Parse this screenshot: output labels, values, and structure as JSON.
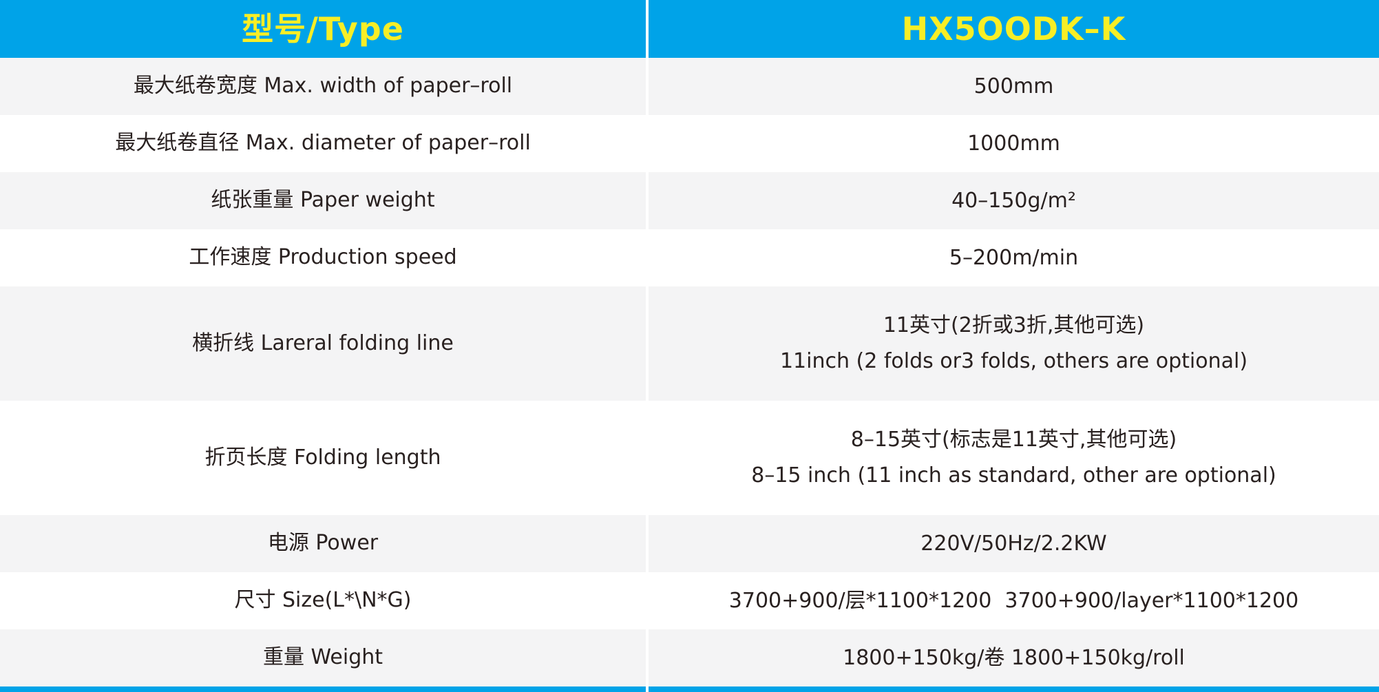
{
  "colors": {
    "header_blue": "#00a3e8",
    "header_yellow": "#f8ee26",
    "row_gray": "#f4f4f5",
    "row_white": "#ffffff",
    "text_dark": "#292120"
  },
  "table": {
    "header": {
      "type_label": "型号/Type",
      "model_label": "HX5OODK–K"
    },
    "rows": [
      {
        "label": "最大纸卷宽度 Max. width of paper–roll",
        "value1": "500mm",
        "value2": ""
      },
      {
        "label": "最大纸卷直径 Max. diameter of paper–roll",
        "value1": "1000mm",
        "value2": ""
      },
      {
        "label": "纸张重量 Paper weight",
        "value1": "40–150g/m²",
        "value2": ""
      },
      {
        "label": "工作速度 Production speed",
        "value1": "5–200m/min",
        "value2": ""
      },
      {
        "label": "横折线 Lareral folding line",
        "value1": "11英寸(2折或3折,其他可选)",
        "value2": "11inch (2 folds or3 folds, others are optional)"
      },
      {
        "label": "折页长度 Folding length",
        "value1": "8–15英寸(标志是11英寸,其他可选)",
        "value2": "8–15 inch (11 inch as standard, other are optional)"
      },
      {
        "label": "电源 Power",
        "value1": "220V/50Hz/2.2KW",
        "value2": ""
      },
      {
        "label": "尺寸 Size(L*\\N*G)",
        "value1": "3700+900/层*1100*1200  3700+900/layer*1100*1200",
        "value2": ""
      },
      {
        "label": "重量 Weight",
        "value1": "1800+150kg/卷 1800+150kg/roll",
        "value2": ""
      }
    ]
  }
}
